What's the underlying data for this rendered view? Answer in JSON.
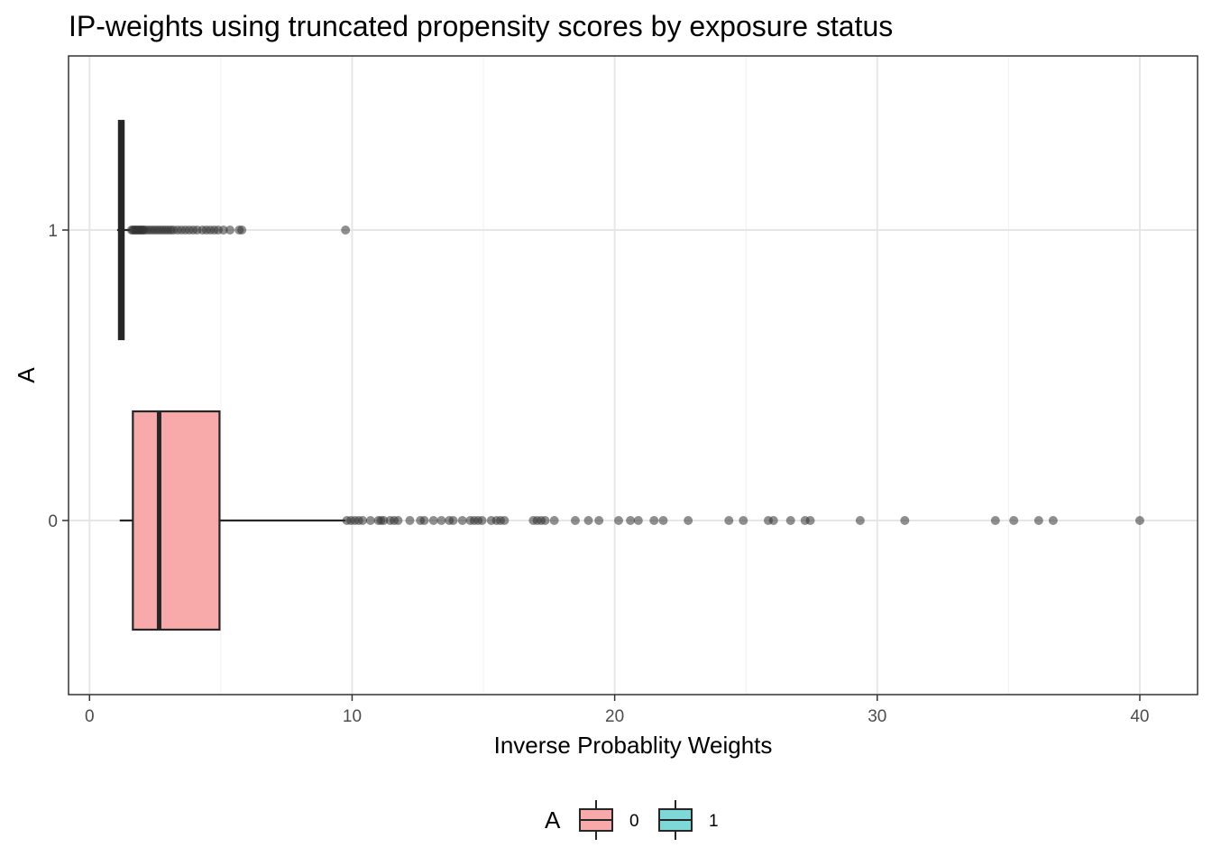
{
  "chart_data": {
    "type": "boxplot",
    "title": "IP-weights using truncated propensity scores by exposure status",
    "xlabel": "Inverse Probablity Weights",
    "ylabel": "A",
    "xlim": [
      -0.8,
      42.2
    ],
    "x_ticks": [
      0,
      10,
      20,
      30,
      40
    ],
    "x_tick_labels": [
      "0",
      "10",
      "20",
      "30",
      "40"
    ],
    "categories": [
      "0",
      "1"
    ],
    "grid": true,
    "legend": {
      "title": "A",
      "position": "bottom",
      "entries": [
        {
          "label": "0",
          "color": "#F8A9A9"
        },
        {
          "label": "1",
          "color": "#7FD8D8"
        }
      ]
    },
    "series": [
      {
        "category": "0",
        "fill": "#F8A9A9",
        "whisker_low": 1.15,
        "q1": 1.65,
        "median": 2.65,
        "q3": 4.95,
        "whisker_high": 9.75,
        "outliers": [
          9.8,
          9.95,
          10.1,
          10.25,
          10.4,
          10.7,
          11.0,
          11.1,
          11.2,
          11.45,
          11.6,
          11.75,
          12.2,
          12.6,
          12.75,
          13.1,
          13.4,
          13.7,
          13.85,
          14.2,
          14.5,
          14.65,
          14.8,
          14.95,
          15.3,
          15.5,
          15.65,
          15.8,
          16.9,
          17.05,
          17.2,
          17.35,
          17.7,
          18.5,
          19.0,
          19.4,
          20.15,
          20.6,
          20.9,
          21.5,
          21.85,
          22.8,
          24.35,
          24.9,
          25.85,
          26.05,
          26.7,
          27.25,
          27.45,
          29.35,
          31.05,
          34.5,
          35.2,
          36.15,
          36.7,
          40.0
        ]
      },
      {
        "category": "1",
        "fill": "#7FD8D8",
        "whisker_low": 1.05,
        "q1": 1.12,
        "median": 1.2,
        "q3": 1.3,
        "whisker_high": 1.55,
        "outliers": [
          1.6,
          1.65,
          1.7,
          1.75,
          1.8,
          1.85,
          1.9,
          1.95,
          2.0,
          2.05,
          2.1,
          2.2,
          2.3,
          2.4,
          2.5,
          2.6,
          2.7,
          2.8,
          2.9,
          3.0,
          3.1,
          3.2,
          3.35,
          3.5,
          3.65,
          3.8,
          3.95,
          4.1,
          4.3,
          4.45,
          4.6,
          4.75,
          4.9,
          5.1,
          5.35,
          5.7,
          5.8,
          9.75
        ]
      }
    ]
  }
}
